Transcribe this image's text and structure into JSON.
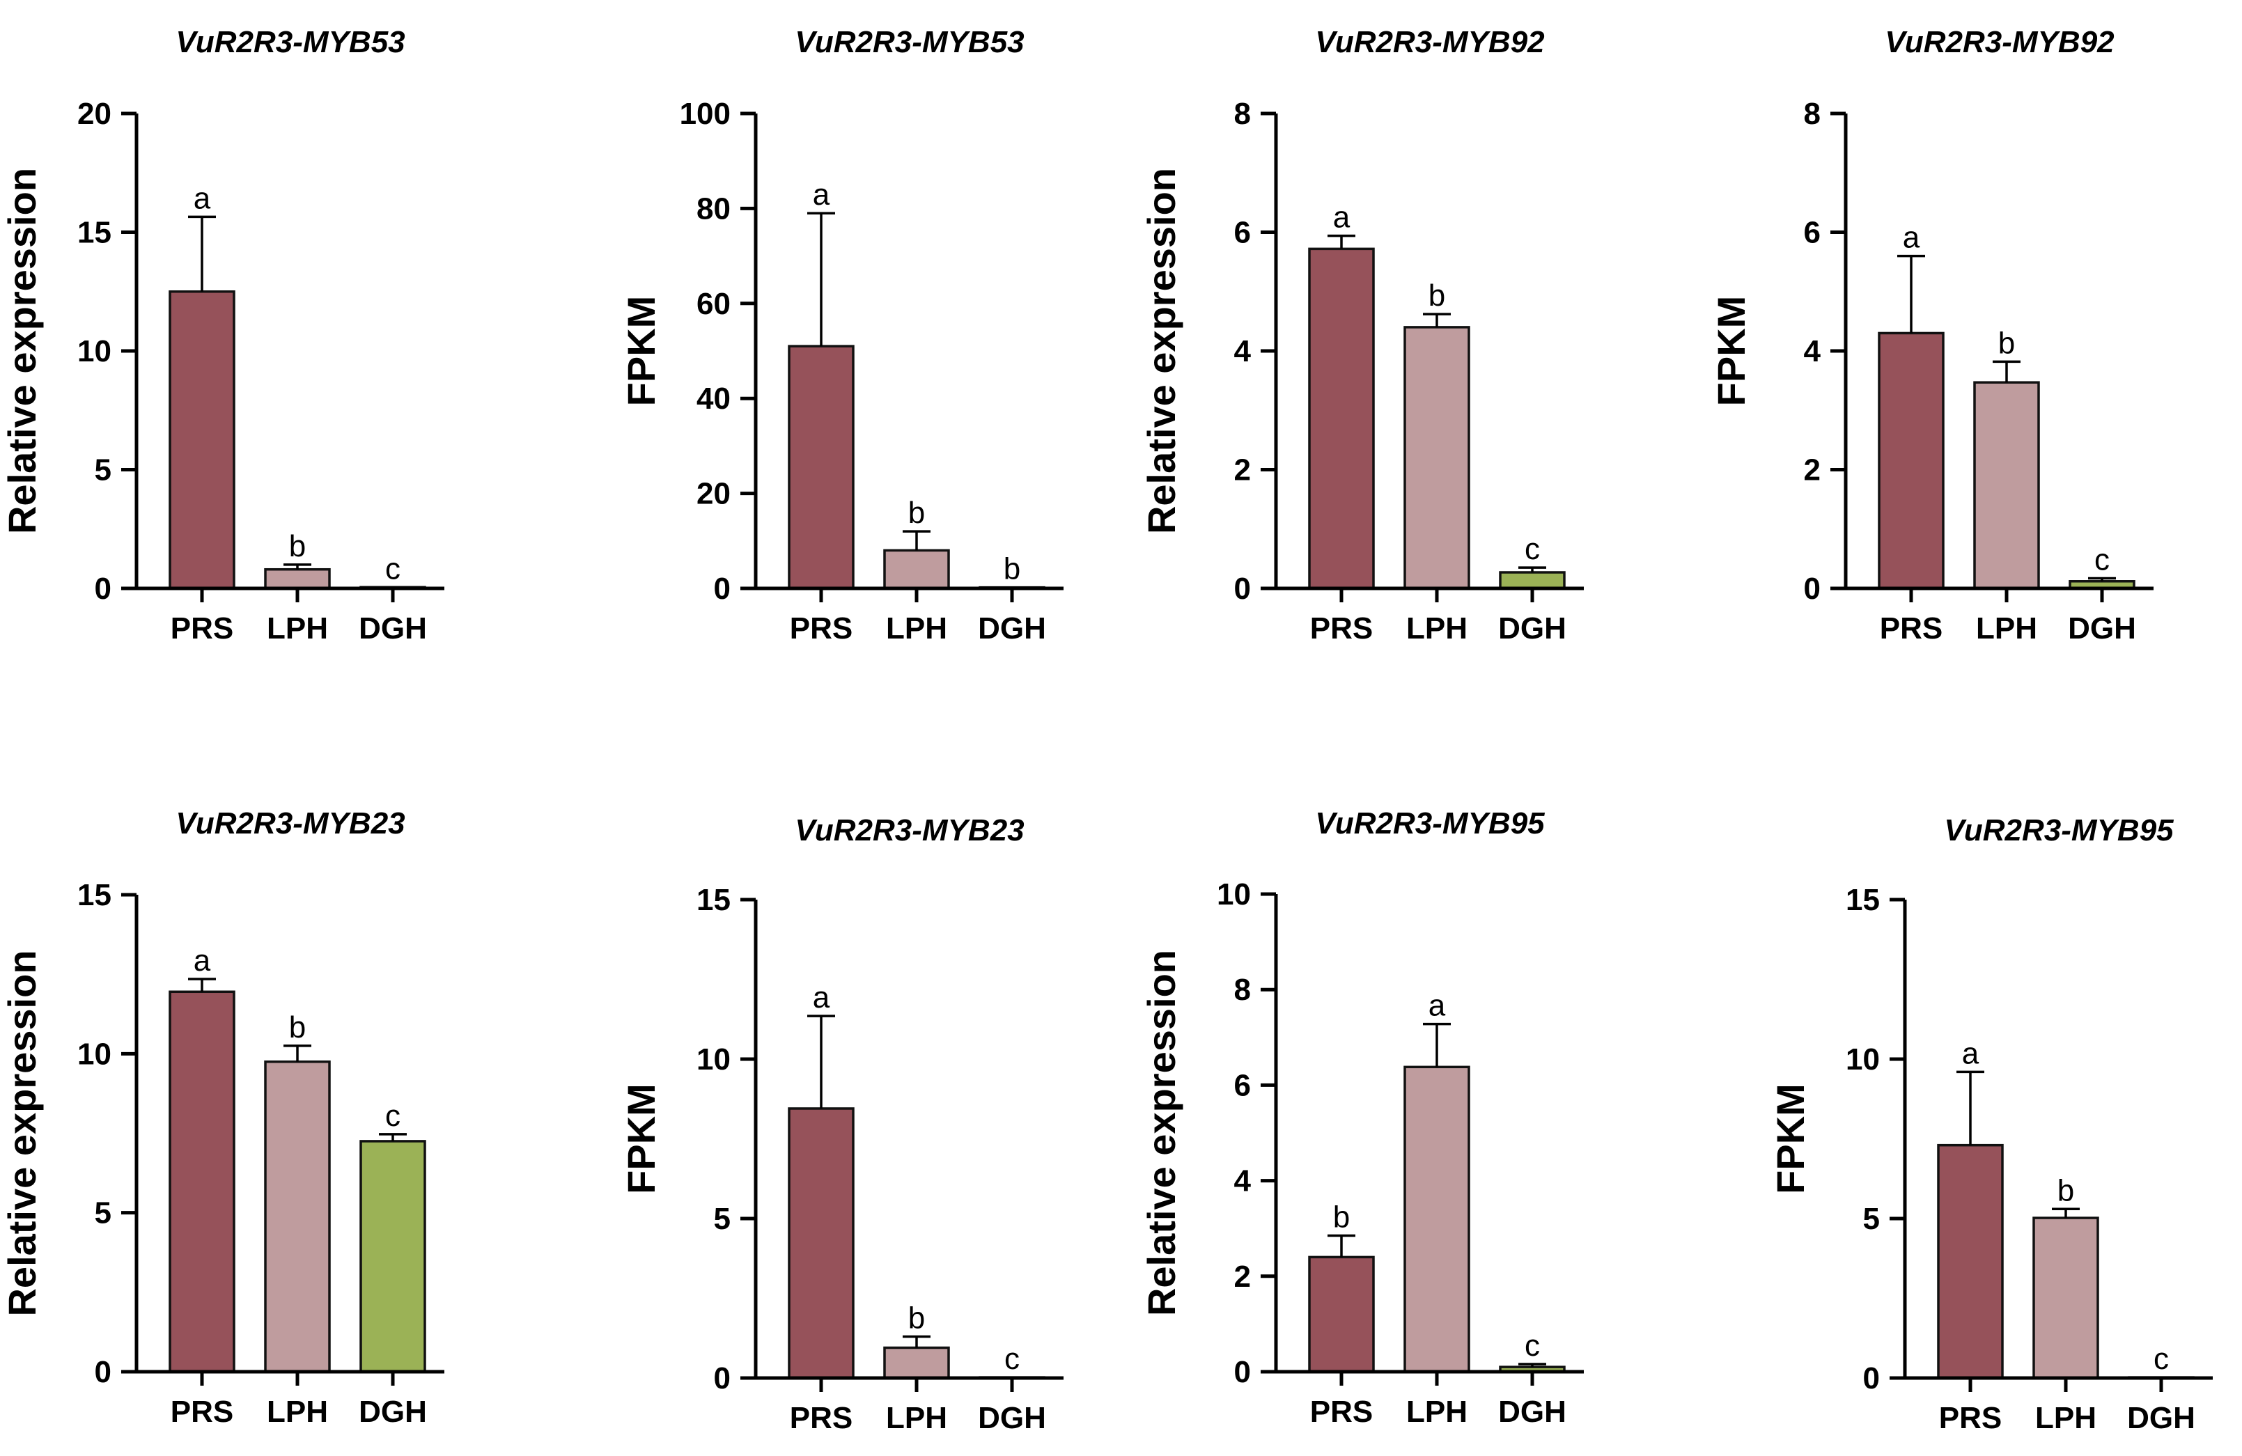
{
  "colors": {
    "PRS": "#96525a",
    "LPH": "#bf9c9e",
    "DGH": "#9bb256",
    "axis": "#000000"
  },
  "chart_data": [
    {
      "type": "bar",
      "title": "VuR2R3-MYB53",
      "ylabel": "Relative expression",
      "xlabel": "",
      "categories": [
        "PRS",
        "LPH",
        "DGH"
      ],
      "values": [
        12.5,
        0.8,
        0.05
      ],
      "errors": [
        3.15,
        0.2,
        0.0
      ],
      "significance": [
        "a",
        "b",
        "c"
      ],
      "ylim": [
        0,
        20
      ],
      "yticks": [
        0,
        5,
        10,
        15,
        20
      ]
    },
    {
      "type": "bar",
      "title": "VuR2R3-MYB53",
      "ylabel": "FPKM",
      "xlabel": "",
      "categories": [
        "PRS",
        "LPH",
        "DGH"
      ],
      "values": [
        51,
        8,
        0.2
      ],
      "errors": [
        28,
        4,
        0.0
      ],
      "significance": [
        "a",
        "b",
        "b"
      ],
      "ylim": [
        0,
        100
      ],
      "yticks": [
        0,
        20,
        40,
        60,
        80,
        100
      ]
    },
    {
      "type": "bar",
      "title": "VuR2R3-MYB92",
      "ylabel": "Relative expression",
      "xlabel": "",
      "categories": [
        "PRS",
        "LPH",
        "DGH"
      ],
      "values": [
        5.72,
        4.4,
        0.27
      ],
      "errors": [
        0.22,
        0.22,
        0.08
      ],
      "significance": [
        "a",
        "b",
        "c"
      ],
      "ylim": [
        0,
        8
      ],
      "yticks": [
        0,
        2,
        4,
        6,
        8
      ]
    },
    {
      "type": "bar",
      "title": "VuR2R3-MYB92",
      "ylabel": "FPKM",
      "xlabel": "",
      "categories": [
        "PRS",
        "LPH",
        "DGH"
      ],
      "values": [
        4.3,
        3.47,
        0.12
      ],
      "errors": [
        1.3,
        0.35,
        0.05
      ],
      "significance": [
        "a",
        "b",
        "c"
      ],
      "ylim": [
        0,
        8
      ],
      "yticks": [
        0,
        2,
        4,
        6,
        8
      ]
    },
    {
      "type": "bar",
      "title": "VuR2R3-MYB23",
      "ylabel": "Relative expression",
      "xlabel": "",
      "categories": [
        "PRS",
        "LPH",
        "DGH"
      ],
      "values": [
        11.95,
        9.75,
        7.25
      ],
      "errors": [
        0.4,
        0.5,
        0.22
      ],
      "significance": [
        "a",
        "b",
        "c"
      ],
      "ylim": [
        0,
        15
      ],
      "yticks": [
        0,
        5,
        10,
        15
      ]
    },
    {
      "type": "bar",
      "title": "VuR2R3-MYB23",
      "ylabel": "FPKM",
      "xlabel": "",
      "categories": [
        "PRS",
        "LPH",
        "DGH"
      ],
      "values": [
        8.45,
        0.95,
        0.02
      ],
      "errors": [
        2.9,
        0.35,
        0.0
      ],
      "significance": [
        "a",
        "b",
        "c"
      ],
      "ylim": [
        0,
        15
      ],
      "yticks": [
        0,
        5,
        10,
        15
      ]
    },
    {
      "type": "bar",
      "title": "VuR2R3-MYB95",
      "ylabel": "Relative expression",
      "xlabel": "",
      "categories": [
        "PRS",
        "LPH",
        "DGH"
      ],
      "values": [
        2.4,
        6.38,
        0.1
      ],
      "errors": [
        0.45,
        0.9,
        0.06
      ],
      "significance": [
        "b",
        "a",
        "c"
      ],
      "ylim": [
        0,
        10
      ],
      "yticks": [
        0,
        2,
        4,
        6,
        8,
        10
      ]
    },
    {
      "type": "bar",
      "title": "VuR2R3-MYB95",
      "ylabel": "FPKM",
      "xlabel": "",
      "categories": [
        "PRS",
        "LPH",
        "DGH"
      ],
      "values": [
        7.3,
        5.02,
        0.02
      ],
      "errors": [
        2.3,
        0.28,
        0.0
      ],
      "significance": [
        "a",
        "b",
        "c"
      ],
      "ylim": [
        0,
        15
      ],
      "yticks": [
        0,
        5,
        10,
        15
      ]
    }
  ]
}
